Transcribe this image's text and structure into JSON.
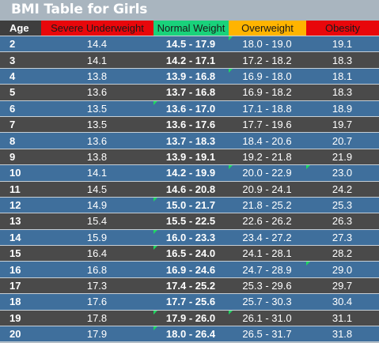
{
  "title": "BMI Table for Girls",
  "colors": {
    "header_severe": "#e8070b",
    "header_normal": "#19d27b",
    "header_overweight": "#ffb400",
    "header_obesity": "#e8070b",
    "row_blue": "#3f6f9c",
    "row_dark": "#4a4a4a",
    "comment_marker": "#1ed760"
  },
  "headers": {
    "age": "Age",
    "severe": "Severe Underweight",
    "normal": "Normal Weight",
    "overweight": "Overweight",
    "obesity": "Obesity"
  },
  "rows": [
    {
      "age": "2",
      "severe": "14.4",
      "normal": "14.5 - 17.9",
      "overweight": "18.0 - 19.0",
      "obesity": "19.1"
    },
    {
      "age": "3",
      "severe": "14.1",
      "normal": "14.2 - 17.1",
      "overweight": "17.2 - 18.2",
      "obesity": "18.3"
    },
    {
      "age": "4",
      "severe": "13.8",
      "normal": "13.9 - 16.8",
      "overweight": "16.9 - 18.0",
      "obesity": "18.1"
    },
    {
      "age": "5",
      "severe": "13.6",
      "normal": "13.7 - 16.8",
      "overweight": "16.9 - 18.2",
      "obesity": "18.3"
    },
    {
      "age": "6",
      "severe": "13.5",
      "normal": "13.6 - 17.0",
      "overweight": "17.1 - 18.8",
      "obesity": "18.9"
    },
    {
      "age": "7",
      "severe": "13.5",
      "normal": "13.6 - 17.6",
      "overweight": "17.7 - 19.6",
      "obesity": "19.7"
    },
    {
      "age": "8",
      "severe": "13.6",
      "normal": "13.7 - 18.3",
      "overweight": "18.4 - 20.6",
      "obesity": "20.7"
    },
    {
      "age": "9",
      "severe": "13.8",
      "normal": "13.9 - 19.1",
      "overweight": "19.2 - 21.8",
      "obesity": "21.9"
    },
    {
      "age": "10",
      "severe": "14.1",
      "normal": "14.2 - 19.9",
      "overweight": "20.0 - 22.9",
      "obesity": "23.0"
    },
    {
      "age": "11",
      "severe": "14.5",
      "normal": "14.6 - 20.8",
      "overweight": "20.9 - 24.1",
      "obesity": "24.2"
    },
    {
      "age": "12",
      "severe": "14.9",
      "normal": "15.0 - 21.7",
      "overweight": "21.8 - 25.2",
      "obesity": "25.3"
    },
    {
      "age": "13",
      "severe": "15.4",
      "normal": "15.5 - 22.5",
      "overweight": "22.6 - 26.2",
      "obesity": "26.3"
    },
    {
      "age": "14",
      "severe": "15.9",
      "normal": "16.0 - 23.3",
      "overweight": "23.4 - 27.2",
      "obesity": "27.3"
    },
    {
      "age": "15",
      "severe": "16.4",
      "normal": "16.5 - 24.0",
      "overweight": "24.1 - 28.1",
      "obesity": "28.2"
    },
    {
      "age": "16",
      "severe": "16.8",
      "normal": "16.9 - 24.6",
      "overweight": "24.7 - 28.9",
      "obesity": "29.0"
    },
    {
      "age": "17",
      "severe": "17.3",
      "normal": "17.4 - 25.2",
      "overweight": "25.3 - 29.6",
      "obesity": "29.7"
    },
    {
      "age": "18",
      "severe": "17.6",
      "normal": "17.7 - 25.6",
      "overweight": "25.7 - 30.3",
      "obesity": "30.4"
    },
    {
      "age": "19",
      "severe": "17.8",
      "normal": "17.9 - 26.0",
      "overweight": "26.1 - 31.0",
      "obesity": "31.1"
    },
    {
      "age": "20",
      "severe": "17.9",
      "normal": "18.0 - 26.4",
      "overweight": "26.5 - 31.7",
      "obesity": "31.8"
    }
  ]
}
